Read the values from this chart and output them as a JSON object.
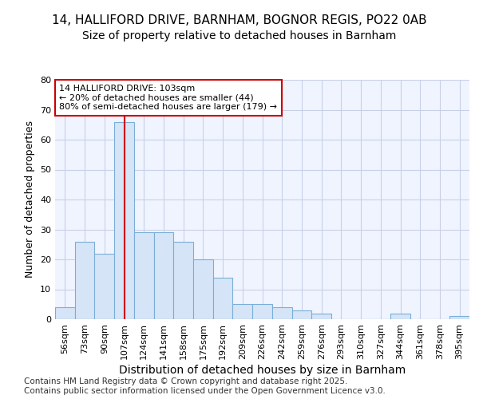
{
  "title_line1": "14, HALLIFORD DRIVE, BARNHAM, BOGNOR REGIS, PO22 0AB",
  "title_line2": "Size of property relative to detached houses in Barnham",
  "xlabel": "Distribution of detached houses by size in Barnham",
  "ylabel": "Number of detached properties",
  "categories": [
    "56sqm",
    "73sqm",
    "90sqm",
    "107sqm",
    "124sqm",
    "141sqm",
    "158sqm",
    "175sqm",
    "192sqm",
    "209sqm",
    "226sqm",
    "242sqm",
    "259sqm",
    "276sqm",
    "293sqm",
    "310sqm",
    "327sqm",
    "344sqm",
    "361sqm",
    "378sqm",
    "395sqm"
  ],
  "values": [
    4,
    26,
    22,
    66,
    29,
    29,
    26,
    20,
    14,
    5,
    5,
    4,
    3,
    2,
    0,
    0,
    0,
    2,
    0,
    0,
    1
  ],
  "bar_color": "#d6e4f7",
  "bar_edge_color": "#7aaed6",
  "ylim": [
    0,
    80
  ],
  "yticks": [
    0,
    10,
    20,
    30,
    40,
    50,
    60,
    70,
    80
  ],
  "vline_position": 3.5,
  "vline_color": "#cc0000",
  "annotation_text": "14 HALLIFORD DRIVE: 103sqm\n← 20% of detached houses are smaller (44)\n80% of semi-detached houses are larger (179) →",
  "annotation_box_color": "#ffffff",
  "annotation_box_edge": "#cc0000",
  "footer_text": "Contains HM Land Registry data © Crown copyright and database right 2025.\nContains public sector information licensed under the Open Government Licence v3.0.",
  "background_color": "#ffffff",
  "plot_bg_color": "#f0f4ff",
  "grid_color": "#c8d0e8",
  "title1_fontsize": 11,
  "title2_fontsize": 10,
  "xlabel_fontsize": 10,
  "ylabel_fontsize": 9,
  "tick_fontsize": 8,
  "footer_fontsize": 7.5
}
